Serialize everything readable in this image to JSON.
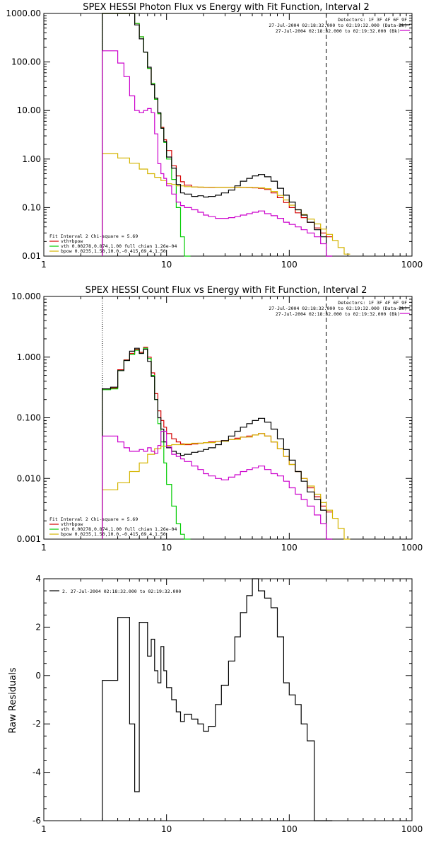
{
  "colors": {
    "data": "#000000",
    "total": "#d40000",
    "vth": "#00cc00",
    "bpow": "#d4b400",
    "bk": "#cc00cc"
  },
  "chart_data": [
    {
      "type": "line",
      "title": "SPEX HESSI Photon Flux vs Energy with Fit Function, Interval 2",
      "xscale": "log",
      "yscale": "log",
      "xlim": [
        1,
        1000
      ],
      "ylim": [
        0.01,
        1000
      ],
      "xticks": [
        "1",
        "10",
        "100",
        "1000"
      ],
      "yticks": [
        "0.01",
        "0.10",
        "1.00",
        "10.00",
        "100.00",
        "1000.00"
      ],
      "vlines": [
        {
          "x": 3,
          "style": "dotted"
        },
        {
          "x": 200,
          "style": "dashed"
        }
      ],
      "info": [
        "Detectors: 1F 3F 4F 6F 9F",
        "27-Jul-2004 02:18:32.000 to 02:19:32.000 (Data-Bk)",
        "27-Jul-2004 02:18:32.000 to 02:19:32.000 (Bk)"
      ],
      "legend_title": "Fit Interval 2   Chi-square = 5.69",
      "legend": [
        "vth+bpow",
        "vth 0.00278,0.874,1.00  full chian 1.26e-04",
        "bpow 0.0235,1.50,10.0,-0.415,69.4,1.50"
      ],
      "series": [
        {
          "key": "total",
          "x": [
            3,
            3.5,
            4,
            4.5,
            5,
            5.5,
            6,
            6.5,
            7,
            7.5,
            8,
            8.5,
            9,
            9.5,
            10,
            11,
            12,
            13,
            14,
            16,
            18,
            20,
            22,
            25,
            28,
            32,
            36,
            40,
            45,
            50,
            56,
            63,
            71,
            80,
            90,
            100,
            112,
            125,
            140,
            160,
            180,
            200
          ],
          "y": [
            1000,
            1000,
            1000,
            1000,
            1000,
            620,
            330,
            160,
            74,
            36,
            17,
            8.6,
            4.5,
            2.5,
            1.5,
            0.73,
            0.45,
            0.34,
            0.29,
            0.265,
            0.262,
            0.261,
            0.26,
            0.26,
            0.26,
            0.26,
            0.26,
            0.259,
            0.258,
            0.255,
            0.25,
            0.236,
            0.2,
            0.16,
            0.127,
            0.1,
            0.078,
            0.062,
            0.05,
            0.038,
            0.03,
            0.025
          ]
        },
        {
          "key": "vth",
          "x": [
            3,
            3.5,
            4,
            4.5,
            5,
            5.5,
            6,
            6.5,
            7,
            7.5,
            8,
            8.5,
            9,
            9.5,
            10,
            11,
            12,
            13,
            14
          ],
          "y": [
            1000,
            1000,
            1000,
            1000,
            1000,
            620,
            330,
            160,
            74,
            36,
            17,
            8.6,
            4.3,
            2.2,
            1.0,
            0.38,
            0.1,
            0.025,
            0.01
          ]
        },
        {
          "key": "bpow",
          "x": [
            3,
            4,
            5,
            6,
            7,
            8,
            9,
            10,
            11,
            12,
            14,
            16,
            20,
            25,
            32,
            40,
            50,
            56,
            63,
            71,
            80,
            90,
            100,
            112,
            125,
            140,
            160,
            180,
            200,
            225,
            250,
            280
          ],
          "y": [
            1.3,
            1.05,
            0.82,
            0.62,
            0.5,
            0.42,
            0.36,
            0.31,
            0.3,
            0.28,
            0.27,
            0.265,
            0.262,
            0.26,
            0.26,
            0.26,
            0.258,
            0.255,
            0.245,
            0.215,
            0.178,
            0.143,
            0.112,
            0.09,
            0.072,
            0.058,
            0.046,
            0.036,
            0.028,
            0.021,
            0.015,
            0.011
          ]
        },
        {
          "key": "data",
          "x": [
            3,
            3.5,
            4,
            4.5,
            5,
            5.5,
            6,
            6.5,
            7,
            7.5,
            8,
            8.5,
            9,
            9.5,
            10,
            11,
            12,
            13,
            14,
            16,
            18,
            20,
            22,
            25,
            28,
            32,
            36,
            40,
            45,
            50,
            56,
            63,
            71,
            80,
            90,
            100,
            112,
            125,
            140,
            160,
            180,
            200
          ],
          "y": [
            1000,
            1000,
            1000,
            1000,
            1000,
            580,
            300,
            160,
            78,
            34,
            18,
            9,
            4.3,
            2.3,
            1.1,
            0.65,
            0.3,
            0.2,
            0.19,
            0.17,
            0.175,
            0.165,
            0.17,
            0.18,
            0.2,
            0.23,
            0.28,
            0.35,
            0.4,
            0.45,
            0.48,
            0.43,
            0.35,
            0.25,
            0.18,
            0.13,
            0.09,
            0.07,
            0.05,
            0.035,
            0.025,
            0.01
          ]
        },
        {
          "key": "bk",
          "x": [
            3,
            3.5,
            4,
            4.5,
            5,
            5.5,
            6,
            6.5,
            7,
            7.5,
            8,
            8.5,
            9,
            9.5,
            10,
            11,
            12,
            13,
            14,
            16,
            18,
            20,
            22,
            25,
            28,
            32,
            36,
            40,
            45,
            50,
            56,
            63,
            71,
            80,
            90,
            100,
            112,
            125,
            140,
            160,
            180,
            200
          ],
          "y": [
            170,
            170,
            95,
            50,
            20,
            10,
            9,
            10,
            11,
            9,
            3.3,
            0.8,
            0.5,
            0.4,
            0.28,
            0.19,
            0.13,
            0.11,
            0.1,
            0.09,
            0.08,
            0.07,
            0.065,
            0.06,
            0.06,
            0.062,
            0.065,
            0.07,
            0.075,
            0.08,
            0.085,
            0.075,
            0.068,
            0.06,
            0.05,
            0.045,
            0.04,
            0.035,
            0.03,
            0.025,
            0.018,
            0.01
          ]
        }
      ]
    },
    {
      "type": "line",
      "title": "SPEX HESSI Count Flux vs Energy with Fit Function, Interval 2",
      "xscale": "log",
      "yscale": "log",
      "xlim": [
        1,
        1000
      ],
      "ylim": [
        0.001,
        10
      ],
      "xticks": [
        "1",
        "10",
        "100",
        "1000"
      ],
      "yticks": [
        "0.001",
        "0.010",
        "0.100",
        "1.000",
        "10.000"
      ],
      "vlines": [
        {
          "x": 3,
          "style": "dotted"
        },
        {
          "x": 200,
          "style": "dashed"
        }
      ],
      "info": [
        "Detectors: 1F 3F 4F 6F 9F",
        "27-Jul-2004 02:18:32.000 to 02:19:32.000 (Data-Bk)",
        "27-Jul-2004 02:18:32.000 to 02:19:32.000 (Bk)"
      ],
      "legend_title": "Fit Interval 2   Chi-square = 5.69",
      "legend": [
        "vth+bpow",
        "vth 0.00278,0.874,1.00  full chian 1.26e-04",
        "bpow 0.0235,1.50,10.0,-0.415,69.4,1.50"
      ],
      "series": [
        {
          "key": "total",
          "x": [
            3,
            3.5,
            4,
            4.5,
            5,
            5.5,
            6,
            6.5,
            7,
            7.5,
            8,
            8.5,
            9,
            9.5,
            10,
            11,
            12,
            13,
            14,
            16,
            18,
            20,
            22,
            25,
            28,
            32,
            36,
            40,
            45,
            50,
            56,
            63,
            71,
            80,
            90,
            100,
            112,
            125,
            140,
            160,
            180,
            200
          ],
          "y": [
            0.3,
            0.31,
            0.62,
            0.9,
            1.15,
            1.35,
            1.2,
            1.45,
            1.0,
            0.55,
            0.25,
            0.13,
            0.09,
            0.07,
            0.055,
            0.045,
            0.04,
            0.037,
            0.036,
            0.037,
            0.038,
            0.039,
            0.04,
            0.041,
            0.042,
            0.044,
            0.046,
            0.048,
            0.05,
            0.052,
            0.055,
            0.05,
            0.04,
            0.031,
            0.023,
            0.017,
            0.013,
            0.01,
            0.007,
            0.005,
            0.0035,
            0.0028
          ]
        },
        {
          "key": "vth",
          "x": [
            3,
            3.5,
            4,
            4.5,
            5,
            5.5,
            6,
            6.5,
            7,
            7.5,
            8,
            8.5,
            9,
            9.5,
            10,
            11,
            12,
            13,
            14
          ],
          "y": [
            0.29,
            0.3,
            0.6,
            0.88,
            1.1,
            1.3,
            1.15,
            1.4,
            0.95,
            0.5,
            0.2,
            0.08,
            0.04,
            0.018,
            0.008,
            0.0035,
            0.0018,
            0.0012,
            0.001
          ]
        },
        {
          "key": "bpow",
          "x": [
            3,
            4,
            5,
            6,
            7,
            8,
            9,
            10,
            11,
            12,
            14,
            16,
            20,
            25,
            32,
            40,
            50,
            56,
            63,
            71,
            80,
            90,
            100,
            112,
            125,
            140,
            160,
            180,
            200,
            225,
            250,
            280
          ],
          "y": [
            0.0065,
            0.0085,
            0.013,
            0.018,
            0.025,
            0.031,
            0.034,
            0.035,
            0.036,
            0.036,
            0.037,
            0.038,
            0.039,
            0.041,
            0.044,
            0.048,
            0.052,
            0.055,
            0.05,
            0.04,
            0.031,
            0.023,
            0.017,
            0.013,
            0.01,
            0.0075,
            0.0055,
            0.004,
            0.003,
            0.0022,
            0.0015,
            0.001
          ]
        },
        {
          "key": "data",
          "x": [
            3,
            3.5,
            4,
            4.5,
            5,
            5.5,
            6,
            6.5,
            7,
            7.5,
            8,
            8.5,
            9,
            9.5,
            10,
            11,
            12,
            13,
            14,
            16,
            18,
            20,
            22,
            25,
            28,
            32,
            36,
            40,
            45,
            50,
            56,
            63,
            71,
            80,
            90,
            100,
            112,
            125,
            140,
            160,
            180,
            200
          ],
          "y": [
            0.3,
            0.32,
            0.6,
            0.88,
            1.25,
            1.4,
            1.15,
            1.35,
            0.85,
            0.48,
            0.2,
            0.1,
            0.065,
            0.04,
            0.032,
            0.028,
            0.026,
            0.024,
            0.025,
            0.027,
            0.028,
            0.03,
            0.032,
            0.036,
            0.042,
            0.05,
            0.06,
            0.07,
            0.08,
            0.09,
            0.098,
            0.085,
            0.065,
            0.045,
            0.03,
            0.02,
            0.013,
            0.009,
            0.006,
            0.0045,
            0.003,
            0.001
          ]
        },
        {
          "key": "bk",
          "x": [
            3,
            3.5,
            4,
            4.5,
            5,
            5.5,
            6,
            6.5,
            7,
            7.5,
            8,
            8.5,
            9,
            9.5,
            10,
            11,
            12,
            13,
            14,
            16,
            18,
            20,
            22,
            25,
            28,
            32,
            36,
            40,
            45,
            50,
            56,
            63,
            71,
            80,
            90,
            100,
            112,
            125,
            140,
            160,
            180,
            200
          ],
          "y": [
            0.05,
            0.05,
            0.04,
            0.032,
            0.028,
            0.028,
            0.03,
            0.028,
            0.032,
            0.028,
            0.026,
            0.035,
            0.06,
            0.06,
            0.033,
            0.025,
            0.023,
            0.021,
            0.019,
            0.016,
            0.014,
            0.012,
            0.011,
            0.01,
            0.0095,
            0.0105,
            0.0115,
            0.013,
            0.014,
            0.015,
            0.016,
            0.014,
            0.012,
            0.011,
            0.009,
            0.007,
            0.0055,
            0.0045,
            0.0035,
            0.0025,
            0.0018,
            0.0008
          ]
        }
      ]
    },
    {
      "type": "line",
      "title": "",
      "xscale": "log",
      "yscale": "linear",
      "xlim": [
        1,
        1000
      ],
      "ylim": [
        -6,
        4
      ],
      "xticks": [
        "1",
        "10",
        "100",
        "1000"
      ],
      "yticks": [
        "-6",
        "-4",
        "-2",
        "0",
        "2",
        "4"
      ],
      "ylabel": "Raw Residuals",
      "legend": [
        "2. 27-Jul-2004 02:18:32.000 to 02:19:32.000"
      ],
      "series": [
        {
          "key": "data",
          "x": [
            3,
            4,
            5,
            5.5,
            6,
            7,
            7.5,
            8,
            8.5,
            9,
            9.5,
            10,
            11,
            12,
            13,
            14,
            16,
            18,
            20,
            22,
            25,
            28,
            32,
            36,
            40,
            45,
            50,
            56,
            63,
            71,
            80,
            90,
            100,
            112,
            125,
            140,
            160,
            180,
            200
          ],
          "y": [
            -0.2,
            2.4,
            -2.0,
            -4.8,
            2.2,
            0.8,
            1.5,
            0.2,
            -0.3,
            1.2,
            0.2,
            -0.5,
            -1.0,
            -1.5,
            -1.9,
            -1.6,
            -1.8,
            -2.0,
            -2.3,
            -2.1,
            -1.2,
            -0.4,
            0.6,
            1.6,
            2.6,
            3.3,
            4.0,
            3.5,
            3.2,
            2.8,
            1.6,
            -0.3,
            -0.8,
            -1.2,
            -2.0,
            -2.7,
            -6.0,
            -6.0,
            -6.0
          ]
        }
      ]
    }
  ]
}
